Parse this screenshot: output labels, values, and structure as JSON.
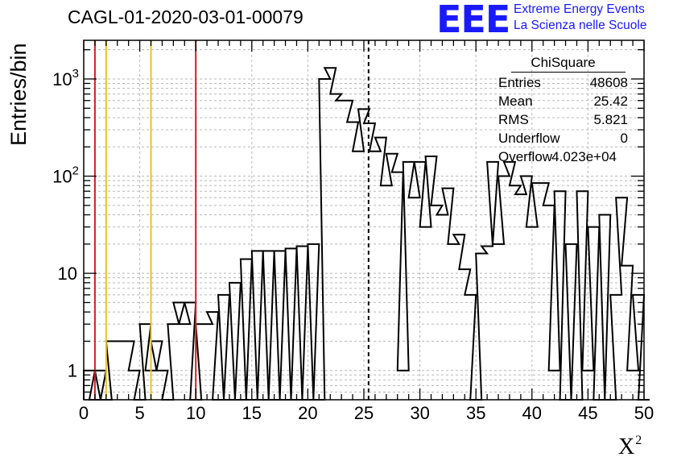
{
  "title": "CAGL-01-2020-03-01-00079",
  "logo": {
    "letters": "EEE",
    "line1": "Extreme Energy Events",
    "line2": "La Scienza nelle Scuole",
    "color": "#1a1aff"
  },
  "stats": {
    "title": "ChiSquare",
    "rows": [
      {
        "key": "Entries",
        "value": "48608"
      },
      {
        "key": "Mean",
        "value": "25.42"
      },
      {
        "key": "RMS",
        "value": "5.821"
      },
      {
        "key": "Underflow",
        "value": "0"
      },
      {
        "key": "Overflow",
        "value": "4.023e+04"
      }
    ]
  },
  "chart_data": {
    "type": "histogram",
    "ylabel": "Entries/bin",
    "xlabel": "X",
    "xlabel_superscript": "2",
    "xlim": [
      0,
      50
    ],
    "ylim": [
      0.5,
      2500
    ],
    "yscale": "log",
    "grid": true,
    "bin_width": 1,
    "x_ticks": [
      "0",
      "5",
      "10",
      "15",
      "20",
      "25",
      "30",
      "35",
      "40",
      "45",
      "50"
    ],
    "y_ticks": [
      {
        "value": 1,
        "label": "1"
      },
      {
        "value": 10,
        "label": "10"
      },
      {
        "value": 100,
        "label": "10",
        "exp": "2"
      },
      {
        "value": 1000,
        "label": "10",
        "exp": "3"
      }
    ],
    "bins": [
      [
        0,
        1
      ],
      [
        0.5,
        0
      ],
      [
        1,
        1
      ],
      [
        1.5,
        0
      ],
      [
        2,
        2
      ],
      [
        2.5,
        2
      ],
      [
        3,
        2
      ],
      [
        3.5,
        2
      ],
      [
        4,
        1
      ],
      [
        4.5,
        0
      ],
      [
        5,
        3
      ],
      [
        5.5,
        1
      ],
      [
        6,
        2
      ],
      [
        6.5,
        1
      ],
      [
        7,
        0
      ],
      [
        7.5,
        3
      ],
      [
        8,
        5
      ],
      [
        8.5,
        3
      ],
      [
        9,
        5
      ],
      [
        9.5,
        0
      ],
      [
        10,
        3
      ],
      [
        10.5,
        3
      ],
      [
        11,
        4
      ],
      [
        11.5,
        0
      ],
      [
        12,
        6
      ],
      [
        12.5,
        0
      ],
      [
        13,
        8
      ],
      [
        13.5,
        0
      ],
      [
        14,
        14
      ],
      [
        14.5,
        0
      ],
      [
        15,
        17
      ],
      [
        15.5,
        0
      ],
      [
        16,
        17
      ],
      [
        16.5,
        0
      ],
      [
        17,
        17
      ],
      [
        17.5,
        0
      ],
      [
        18,
        18
      ],
      [
        18.5,
        0
      ],
      [
        19,
        19
      ],
      [
        19.5,
        0
      ],
      [
        20,
        20
      ],
      [
        20.5,
        0
      ],
      [
        21,
        1000
      ],
      [
        21.5,
        1300
      ],
      [
        22,
        700
      ],
      [
        22.5,
        600
      ],
      [
        23,
        600
      ],
      [
        23.5,
        360
      ],
      [
        24,
        180
      ],
      [
        24.5,
        490
      ],
      [
        25,
        350
      ],
      [
        25.5,
        180
      ],
      [
        26,
        250
      ],
      [
        26.5,
        80
      ],
      [
        27,
        170
      ],
      [
        27.5,
        110
      ],
      [
        28,
        1
      ],
      [
        28.5,
        140
      ],
      [
        29,
        60
      ],
      [
        29.5,
        140
      ],
      [
        30,
        30
      ],
      [
        30.5,
        160
      ],
      [
        31,
        50
      ],
      [
        31.5,
        40
      ],
      [
        32,
        75
      ],
      [
        32.5,
        20
      ],
      [
        33,
        25
      ],
      [
        33.5,
        11
      ],
      [
        34,
        6
      ],
      [
        34.5,
        0
      ],
      [
        35,
        16
      ],
      [
        35.5,
        19
      ],
      [
        36,
        140
      ],
      [
        36.5,
        20
      ],
      [
        37,
        100
      ],
      [
        37.5,
        140
      ],
      [
        38,
        80
      ],
      [
        38.5,
        65
      ],
      [
        39,
        100
      ],
      [
        39.5,
        30
      ],
      [
        40,
        85
      ],
      [
        40.5,
        85
      ],
      [
        41,
        50
      ],
      [
        41.5,
        1
      ],
      [
        42,
        70
      ],
      [
        42.5,
        0
      ],
      [
        43,
        20
      ],
      [
        43.5,
        0
      ],
      [
        44,
        70
      ],
      [
        44.5,
        1
      ],
      [
        45,
        30
      ],
      [
        45.5,
        0
      ],
      [
        46,
        40
      ],
      [
        46.5,
        0
      ],
      [
        47,
        6
      ],
      [
        47.5,
        60
      ],
      [
        48,
        12
      ],
      [
        48.5,
        1
      ],
      [
        49,
        6
      ],
      [
        49.5,
        0
      ]
    ],
    "vlines": [
      {
        "x": 1,
        "color": "#d42020",
        "style": "solid"
      },
      {
        "x": 2,
        "color": "#f2c21a",
        "style": "solid"
      },
      {
        "x": 6,
        "color": "#f2c21a",
        "style": "solid"
      },
      {
        "x": 10,
        "color": "#d42020",
        "style": "solid"
      },
      {
        "x": 25.42,
        "color": "#000000",
        "style": "dashed"
      }
    ]
  }
}
